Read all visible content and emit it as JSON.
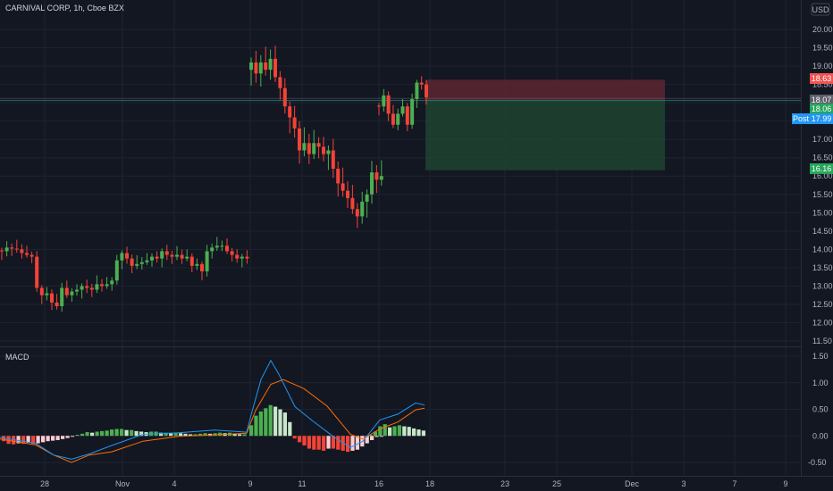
{
  "header": {
    "title": "CARNIVAL CORP, 1h, Cboe BZX",
    "currency": "USD"
  },
  "macd_label": "MACD",
  "colors": {
    "background": "#131722",
    "up": "#26a69a",
    "down": "#ef5350",
    "candle_up": "#4caf50",
    "candle_down": "#f44336",
    "macd_line": "#2196f3",
    "signal_line": "#ff6d00",
    "hist_up_strong": "#4caf50",
    "hist_up_weak": "#c8e6c9",
    "hist_down_strong": "#f44336",
    "hist_down_weak": "#ffcdd2",
    "risk_zone": "#5d2630",
    "reward_zone": "#1e4430",
    "badge_red": "#f05350",
    "badge_green": "#26a65b",
    "badge_blue": "#2196f3",
    "badge_gray": "#5d606b"
  },
  "chart_data": [
    {
      "type": "candlestick",
      "title": "CARNIVAL CORP, 1h, Cboe BZX",
      "ylim": [
        11.35,
        20.45
      ],
      "y_ticks": [
        "11.50",
        "12.00",
        "12.50",
        "13.00",
        "13.50",
        "14.00",
        "14.50",
        "15.00",
        "15.50",
        "16.00",
        "16.50",
        "17.00",
        "17.50",
        "18.00",
        "18.50",
        "19.00",
        "19.50",
        "20.00"
      ],
      "x_ticks": [
        "28",
        "Nov",
        "4",
        "9",
        "11",
        "16",
        "18",
        "23",
        "25",
        "Dec",
        "3",
        "7",
        "9"
      ],
      "segments": [
        {
          "start_date": "Oct 26",
          "closes": [
            13.95,
            14.05,
            14.02,
            14.0,
            13.9,
            13.85,
            13.8,
            12.95,
            12.75,
            12.8,
            12.55,
            12.45,
            12.95,
            12.75,
            12.85,
            12.9,
            13.0,
            12.95,
            12.9,
            13.05,
            13.0,
            13.05,
            13.15,
            13.7,
            13.9,
            13.75,
            13.55,
            13.6,
            13.65,
            13.7,
            13.8,
            13.75,
            13.95,
            13.85,
            13.8,
            13.85,
            13.75,
            13.8,
            13.55,
            13.6,
            13.4,
            13.95,
            14.05,
            14.1,
            14.1,
            13.95,
            13.85,
            13.75,
            13.8,
            13.75
          ]
        },
        {
          "start_date": "Nov 9",
          "closes": [
            19.1,
            18.8,
            19.1,
            18.9,
            19.2,
            18.7,
            18.4,
            17.9,
            17.6,
            17.3,
            16.7,
            16.9,
            16.6,
            16.9,
            16.8,
            16.6,
            16.7,
            16.2,
            15.8,
            15.6,
            15.4,
            15.1,
            14.9,
            15.3,
            15.5,
            16.1,
            15.9,
            16.0
          ]
        },
        {
          "start_date": "Nov 16",
          "closes": [
            17.9,
            18.2,
            17.7,
            17.4,
            17.7,
            17.9,
            17.4,
            18.1,
            18.55,
            18.5,
            18.15
          ]
        }
      ],
      "trade_levels": {
        "stop": 18.63,
        "entry": 18.07,
        "target": 16.16,
        "current": 18.06,
        "post_market": 17.99
      },
      "price_badges": [
        {
          "label": "18.63",
          "value": 18.63,
          "color": "red"
        },
        {
          "label": "18.07",
          "value": 18.07,
          "color": "gray"
        },
        {
          "label": "18.06",
          "value": 18.06,
          "color": "green"
        },
        {
          "label": "17.99",
          "value": 17.99,
          "color": "blue",
          "prefix": "Post"
        },
        {
          "label": "16.16",
          "value": 16.16,
          "color": "green"
        }
      ]
    },
    {
      "type": "macd",
      "title": "MACD",
      "ylim": [
        -0.62,
        1.58
      ],
      "y_ticks": [
        "1.50",
        "1.00",
        "0.50",
        "0.00",
        "-0.50"
      ],
      "macd_curve": [
        [
          0,
          -0.03
        ],
        [
          40,
          -0.14
        ],
        [
          60,
          -0.36
        ],
        [
          80,
          -0.44
        ],
        [
          100,
          -0.34
        ],
        [
          125,
          -0.18
        ],
        [
          160,
          0.03
        ],
        [
          200,
          0.06
        ],
        [
          240,
          0.11
        ],
        [
          276,
          0.07
        ],
        [
          282,
          0.46
        ],
        [
          292,
          1.06
        ],
        [
          303,
          1.42
        ],
        [
          312,
          1.16
        ],
        [
          330,
          0.55
        ],
        [
          350,
          0.28
        ],
        [
          372,
          0.0
        ],
        [
          392,
          -0.22
        ],
        [
          406,
          -0.1
        ],
        [
          425,
          0.3
        ],
        [
          445,
          0.41
        ],
        [
          465,
          0.62
        ],
        [
          475,
          0.58
        ]
      ],
      "signal_curve": [
        [
          0,
          -0.06
        ],
        [
          40,
          -0.17
        ],
        [
          60,
          -0.36
        ],
        [
          80,
          -0.5
        ],
        [
          100,
          -0.36
        ],
        [
          125,
          -0.3
        ],
        [
          160,
          -0.1
        ],
        [
          200,
          -0.01
        ],
        [
          240,
          0.02
        ],
        [
          276,
          0.05
        ],
        [
          286,
          0.48
        ],
        [
          303,
          0.97
        ],
        [
          317,
          1.06
        ],
        [
          340,
          0.89
        ],
        [
          366,
          0.56
        ],
        [
          392,
          0.03
        ],
        [
          406,
          -0.06
        ],
        [
          425,
          0.13
        ],
        [
          445,
          0.26
        ],
        [
          465,
          0.49
        ],
        [
          475,
          0.52
        ]
      ],
      "histogram": [
        -0.1,
        -0.15,
        -0.16,
        -0.14,
        -0.15,
        -0.13,
        -0.15,
        -0.14,
        -0.12,
        -0.1,
        -0.09,
        -0.08,
        -0.06,
        -0.04,
        -0.01,
        0.02,
        0.04,
        0.07,
        0.06,
        0.08,
        0.09,
        0.1,
        0.12,
        0.13,
        0.13,
        0.11,
        0.11,
        0.09,
        0.08,
        0.07,
        0.08,
        0.08,
        0.06,
        0.06,
        0.05,
        0.06,
        0.05,
        0.04,
        0.03,
        0.03,
        0.04,
        0.05,
        0.04,
        0.05,
        0.06,
        0.05,
        0.06,
        0.04,
        0.03,
        0.03,
        0.2,
        0.38,
        0.46,
        0.52,
        0.58,
        0.55,
        0.5,
        0.44,
        0.26,
        -0.05,
        -0.12,
        -0.18,
        -0.24,
        -0.26,
        -0.26,
        -0.28,
        -0.24,
        -0.24,
        -0.26,
        -0.28,
        -0.3,
        -0.28,
        -0.26,
        -0.2,
        -0.14,
        -0.08,
        -0.02,
        -0.01,
        -0.01,
        0.02,
        0.08,
        0.18,
        0.22,
        0.16,
        0.18,
        0.2,
        0.18,
        0.17,
        0.14,
        0.12,
        0.1
      ]
    }
  ]
}
